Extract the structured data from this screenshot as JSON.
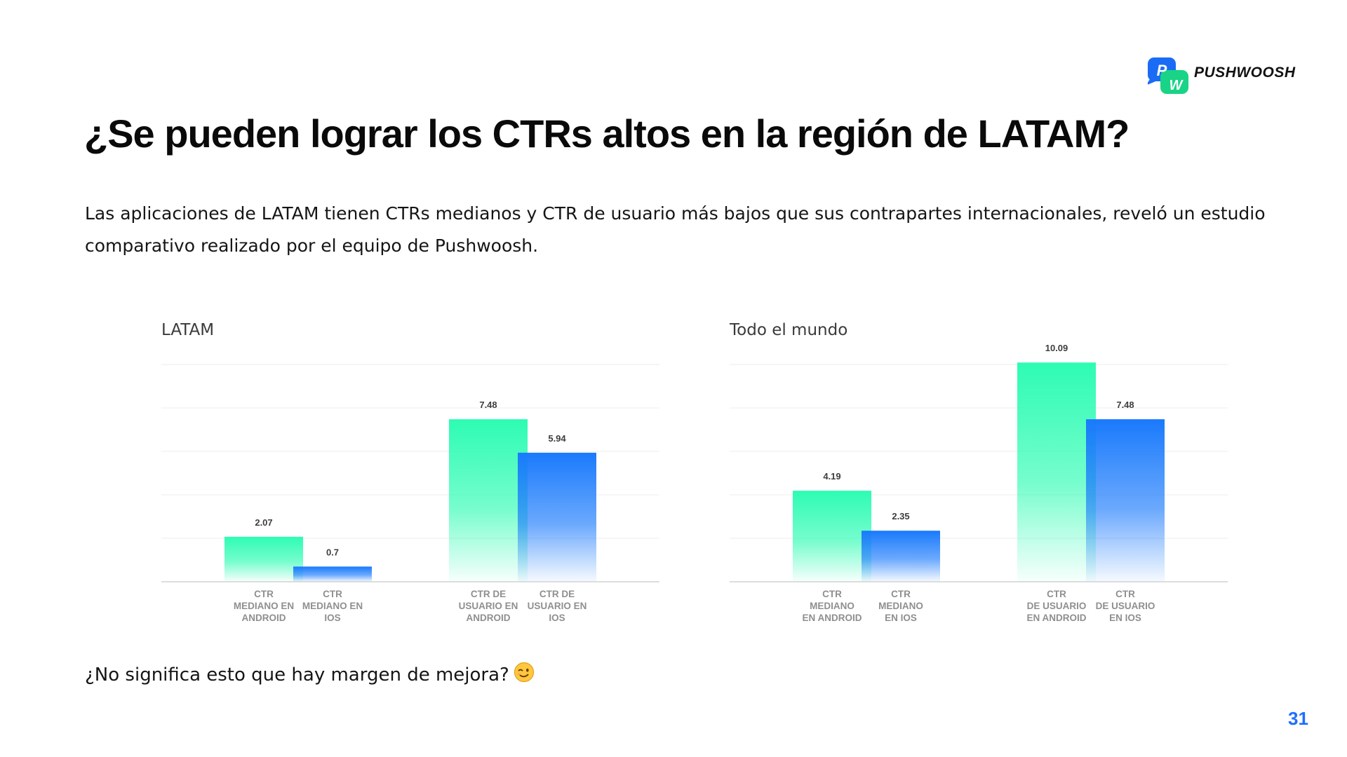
{
  "brand": {
    "name": "PUSHWOOSH",
    "logo_letters": [
      "P",
      "W"
    ]
  },
  "slide": {
    "title": "¿Se pueden lograr los CTRs altos en la región de LATAM?",
    "intro": "Las aplicaciones de LATAM tienen CTRs medianos y CTR de usuario más bajos que sus contrapartes internacionales, reveló un estudio comparativo realizado por el equipo de Pushwoosh.",
    "closing": "¿No significa esto que hay margen de mejora?",
    "page_number": "31"
  },
  "colors": {
    "android_top": "#2dfcb3",
    "ios_top": "#1a7afc",
    "grid": "#ececec",
    "baseline": "#d2d2d2"
  },
  "chart_data": [
    {
      "type": "bar",
      "title": "LATAM",
      "ylim": [
        0,
        10
      ],
      "grid": true,
      "categories": [
        [
          "CTR",
          "MEDIANO EN",
          "ANDROID"
        ],
        [
          "CTR",
          "MEDIANO EN",
          "IOS"
        ],
        [
          "CTR DE",
          "USUARIO EN",
          "ANDROID"
        ],
        [
          "CTR DE",
          "USUARIO EN",
          "IOS"
        ]
      ],
      "values": [
        2.07,
        0.7,
        7.48,
        5.94
      ],
      "value_labels": [
        "2.07",
        "0.7",
        "7.48",
        "5.94"
      ],
      "platform": [
        "android",
        "ios",
        "android",
        "ios"
      ]
    },
    {
      "type": "bar",
      "title": "Todo el mundo",
      "ylim": [
        0,
        10
      ],
      "grid": true,
      "categories": [
        [
          "CTR",
          "MEDIANO",
          "EN ANDROID"
        ],
        [
          "CTR",
          "MEDIANO",
          "EN IOS"
        ],
        [
          "CTR",
          "DE USUARIO",
          "EN ANDROID"
        ],
        [
          "CTR",
          "DE USUARIO",
          "EN IOS"
        ]
      ],
      "values": [
        4.19,
        2.35,
        10.09,
        7.48
      ],
      "value_labels": [
        "4.19",
        "2.35",
        "10.09",
        "7.48"
      ],
      "platform": [
        "android",
        "ios",
        "android",
        "ios"
      ]
    }
  ]
}
